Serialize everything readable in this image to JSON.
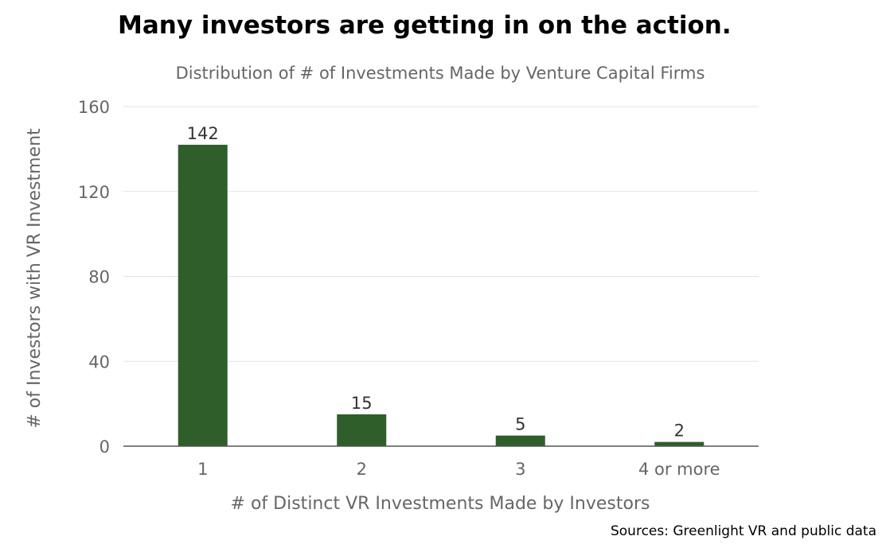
{
  "headline": "Many investors are getting in on the action.",
  "source_note": "Sources: Greenlight VR and public data",
  "colors": {
    "bar": "#2f5e2b",
    "grid": "#e3e3e3",
    "axis": "#666666",
    "label_text": "#666666",
    "data_label": "#333333"
  },
  "chart_data": {
    "type": "bar",
    "title": "Distribution of # of Investments Made by Venture Capital Firms",
    "xlabel": "# of Distinct VR Investments Made by Investors",
    "ylabel": "# of Investors with VR Investment",
    "categories": [
      "1",
      "2",
      "3",
      "4 or more"
    ],
    "values": [
      142,
      15,
      5,
      2
    ],
    "data_labels": [
      "142",
      "15",
      "5",
      "2"
    ],
    "ylim": [
      0,
      160
    ],
    "yticks": [
      0,
      40,
      80,
      120,
      160
    ],
    "grid": true,
    "legend": "none"
  }
}
